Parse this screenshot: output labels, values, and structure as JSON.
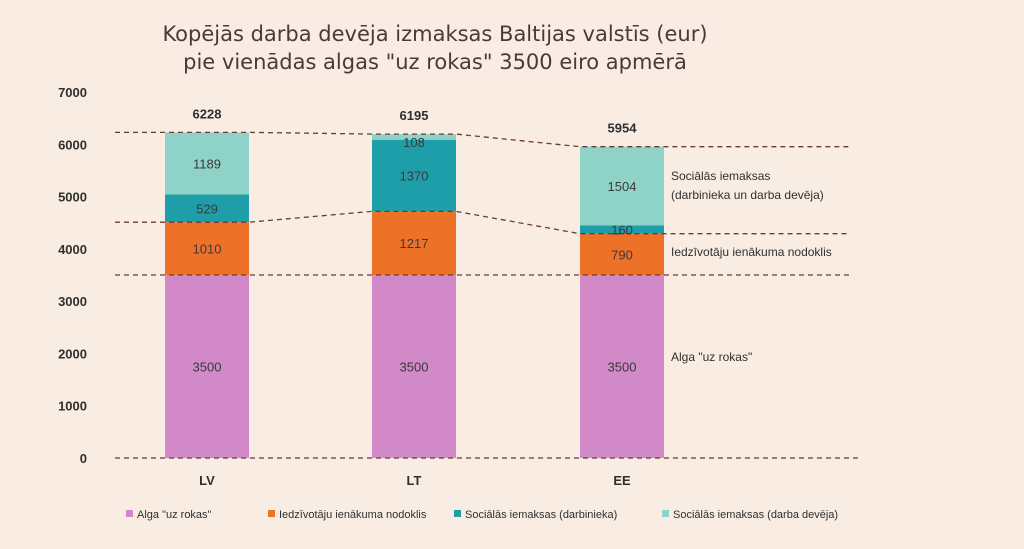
{
  "chart_data": {
    "type": "bar",
    "stacked": true,
    "title_lines": [
      "Kopējās darba devēja izmaksas Baltijas valstīs (eur)",
      "pie vienādas algas \"uz rokas\" 3500 eiro apmērā"
    ],
    "categories": [
      "LV",
      "LT",
      "EE"
    ],
    "series": [
      {
        "name": "Alga \"uz rokas\"",
        "values": [
          3500,
          3500,
          3500
        ],
        "color": "#d18ac7"
      },
      {
        "name": "Iedzīvotāju ienākuma nodoklis",
        "values": [
          1010,
          1217,
          790
        ],
        "color": "#ee7128"
      },
      {
        "name": "Sociālās iemaksas (darbinieka)",
        "values": [
          529,
          1370,
          160
        ],
        "color": "#1d9ea8"
      },
      {
        "name": "Sociālās iemaksas (darba devēja)",
        "values": [
          1189,
          108,
          1504
        ],
        "color": "#8fd3c8"
      }
    ],
    "totals": [
      6228,
      6195,
      5954
    ],
    "ylim": [
      0,
      7000
    ],
    "yticks": [
      0,
      1000,
      2000,
      3000,
      4000,
      5000,
      6000,
      7000
    ],
    "annotations": [
      {
        "lines": [
          "Sociālās iemaksas",
          "(darbinieka un darba devēja)"
        ]
      },
      {
        "lines": [
          "Iedzīvotāju ienākuma nodoklis"
        ]
      },
      {
        "lines": [
          "Alga \"uz rokas\""
        ]
      }
    ],
    "legend_position": "bottom",
    "grid": false
  }
}
